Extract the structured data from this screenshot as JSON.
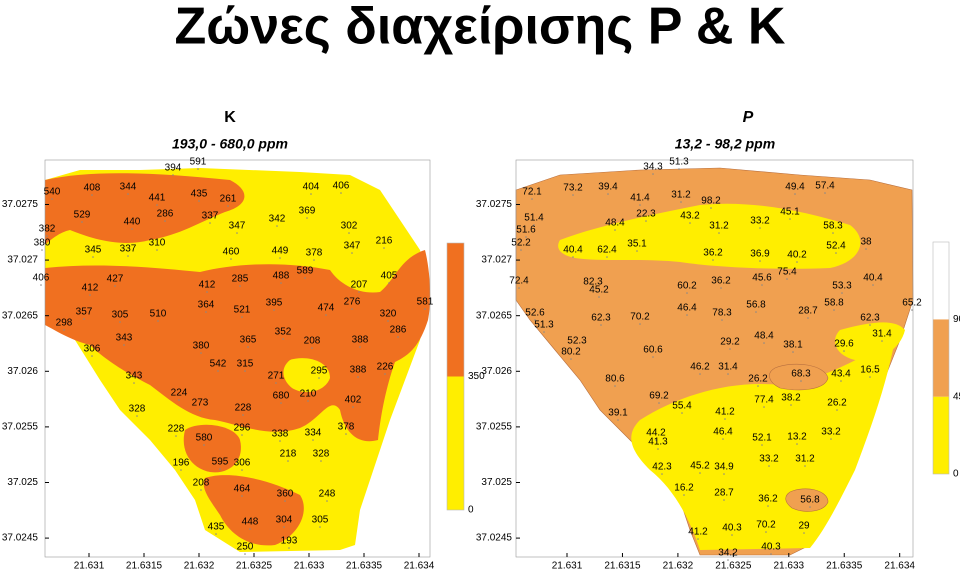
{
  "title": "Ζώνες διαχείρισης P & K",
  "panels": [
    {
      "title": "K",
      "subtitle": "193,0 - 680,0 ppm",
      "xlim": [
        21.6306,
        21.6341
      ],
      "ylim": [
        37.02433,
        37.0279
      ],
      "xticks": [
        21.631,
        21.6315,
        21.632,
        21.6325,
        21.633,
        21.6335,
        21.634
      ],
      "yticks": [
        37.0275,
        37.027,
        37.0265,
        37.026,
        37.0255,
        37.025,
        37.0245
      ],
      "colorbar": {
        "lim": [
          0,
          700
        ],
        "ticks": [
          0,
          350
        ],
        "levels": [
          {
            "from": 0,
            "to": 350,
            "color": "#ffee00"
          },
          {
            "from": 350,
            "to": 700,
            "color": "#f07020"
          }
        ]
      },
      "labels": [
        394,
        591,
        540,
        408,
        344,
        441,
        435,
        261,
        404,
        406,
        529,
        286,
        337,
        369,
        382,
        440,
        347,
        342,
        302,
        380,
        345,
        337,
        310,
        460,
        449,
        378,
        347,
        216,
        406,
        427,
        412,
        412,
        285,
        488,
        589,
        207,
        405,
        357,
        305,
        510,
        364,
        521,
        395,
        474,
        276,
        581,
        320,
        298,
        343,
        380,
        365,
        352,
        208,
        388,
        286,
        306,
        542,
        315,
        271,
        295,
        388,
        226,
        343,
        224,
        680,
        210,
        402,
        273,
        328,
        228,
        228,
        296,
        338,
        334,
        378,
        580,
        218,
        328,
        196,
        595,
        306,
        208,
        464,
        360,
        248,
        435,
        448,
        304,
        305,
        193,
        250
      ]
    },
    {
      "title": "P",
      "subtitle": "13,2 - 98,2 ppm",
      "xlim": [
        21.63054,
        21.63412
      ],
      "ylim": [
        37.02433,
        37.0279
      ],
      "xticks": [
        21.631,
        21.6315,
        21.632,
        21.6325,
        21.633,
        21.6335,
        21.634
      ],
      "yticks": [
        37.0275,
        37.027,
        37.0265,
        37.026,
        37.0255,
        37.025,
        37.0245
      ],
      "colorbar": {
        "lim": [
          0,
          135
        ],
        "ticks": [
          0,
          45,
          90
        ],
        "levels": [
          {
            "from": 0,
            "to": 45,
            "color": "#ffee00"
          },
          {
            "from": 45,
            "to": 90,
            "color": "#f0a050"
          },
          {
            "from": 90,
            "to": 135,
            "color": "#ffffff"
          }
        ]
      },
      "labels": [
        34.3,
        51.3,
        72.1,
        73.2,
        39.4,
        41.4,
        31.2,
        98.2,
        49.4,
        57.4,
        51.4,
        48.4,
        22.3,
        43.2,
        31.2,
        33.2,
        45.1,
        51.6,
        58.3,
        52.2,
        40.4,
        62.4,
        35.1,
        36.2,
        36.9,
        40.2,
        52.4,
        38,
        72.4,
        45.2,
        82.3,
        60.2,
        36.2,
        45.6,
        75.4,
        53.3,
        40.4,
        52.6,
        62.3,
        70.2,
        46.4,
        78.3,
        56.8,
        28.7,
        58.8,
        65.2,
        62.3,
        51.3,
        52.3,
        29.2,
        48.4,
        38.1,
        29.6,
        31.4,
        80.2,
        60.6,
        46.2,
        31.4,
        26.2,
        68.3,
        43.4,
        16.5,
        80.6,
        69.2,
        77.4,
        38.2,
        26.2,
        55.4,
        41.2,
        39.1,
        44.2,
        46.4,
        52.1,
        13.2,
        33.2,
        41.3,
        33.2,
        31.2,
        42.3,
        45.2,
        34.9,
        16.2,
        28.7,
        36.2,
        56.8,
        70.2,
        29,
        41.2,
        40.3,
        40.3,
        34.2
      ]
    }
  ]
}
